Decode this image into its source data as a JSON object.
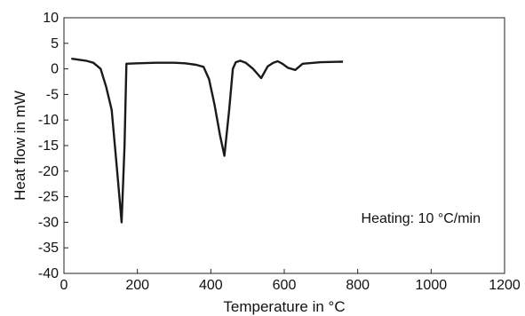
{
  "chart_data": {
    "type": "line",
    "title": "",
    "xlabel": "Temperature in °C",
    "ylabel": "Heat flow in mW",
    "xlim": [
      0,
      1200
    ],
    "ylim": [
      -40,
      10
    ],
    "xticks": [
      0,
      200,
      400,
      600,
      800,
      1000,
      1200
    ],
    "yticks": [
      10,
      5,
      0,
      -5,
      -10,
      -15,
      -20,
      -25,
      -30,
      -35,
      -40
    ],
    "grid": false,
    "annotation": "Heating: 10 °C/min",
    "annotation_position": "lower-right",
    "line_color": "#1a1a1a",
    "series": [
      {
        "x": [
          20,
          60,
          80,
          100,
          115,
          130,
          145,
          157,
          165,
          170,
          200,
          250,
          300,
          330,
          360,
          380,
          395,
          410,
          425,
          437,
          450,
          460,
          468,
          480,
          495,
          515,
          537,
          555,
          570,
          582,
          595,
          610,
          630,
          650,
          700,
          760
        ],
        "y": [
          2,
          1.6,
          1.2,
          0,
          -3.5,
          -8,
          -20,
          -30,
          -15,
          1,
          1.1,
          1.2,
          1.2,
          1.1,
          0.8,
          0.4,
          -2,
          -7,
          -13,
          -17,
          -8,
          0,
          1.3,
          1.6,
          1.2,
          0,
          -1.8,
          0.5,
          1.2,
          1.5,
          1,
          0.2,
          -0.2,
          1,
          1.3,
          1.4
        ]
      }
    ]
  }
}
